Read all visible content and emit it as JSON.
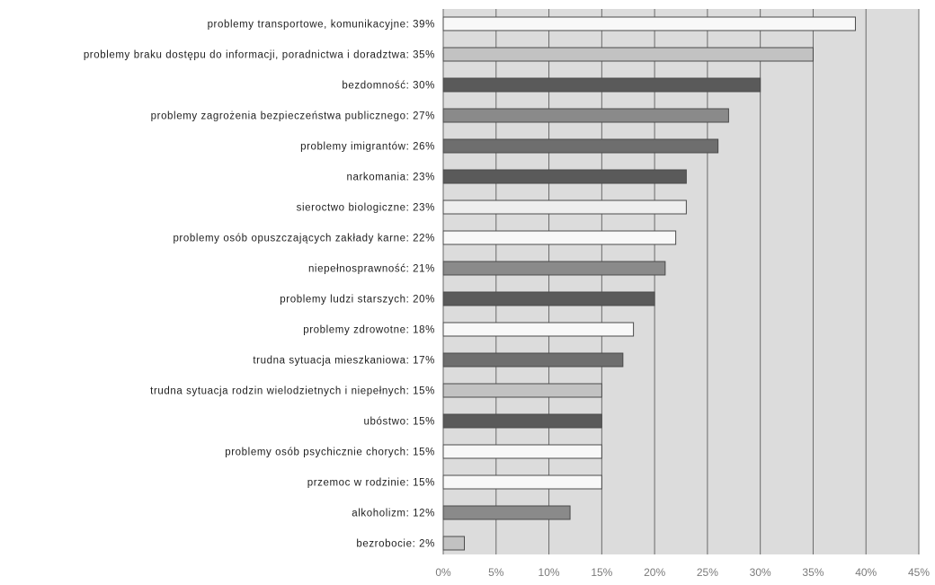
{
  "chart_data": {
    "type": "bar",
    "orientation": "horizontal",
    "title": "",
    "xlabel": "",
    "ylabel": "",
    "xlim": [
      0,
      45
    ],
    "x_ticks": [
      0,
      5,
      10,
      15,
      20,
      25,
      30,
      35,
      40,
      45
    ],
    "x_tick_labels": [
      "0%",
      "5%",
      "10%",
      "15%",
      "20%",
      "25%",
      "30%",
      "35%",
      "40%",
      "45%"
    ],
    "grid": true,
    "legend": "none",
    "categories": [
      "problemy transportowe, komunikacyjne: 39%",
      "problemy braku dostępu do informacji, poradnictwa i doradztwa: 35%",
      "bezdomność: 30%",
      "problemy zagrożenia bezpieczeństwa publicznego: 27%",
      "problemy imigrantów: 26%",
      "narkomania: 23%",
      "sieroctwo biologiczne: 23%",
      "problemy osób opuszczających zakłady karne: 22%",
      "niepełnosprawność: 21%",
      "problemy ludzi starszych: 20%",
      "problemy zdrowotne: 18%",
      "trudna sytuacja mieszkaniowa: 17%",
      "trudna sytuacja rodzin wielodzietnych i niepełnych: 15%",
      "ubóstwo: 15%",
      "problemy osób psychicznie chorych: 15%",
      "przemoc w rodzinie: 15%",
      "alkoholizm: 12%",
      "bezrobocie: 2%"
    ],
    "values": [
      39,
      35,
      30,
      27,
      26,
      23,
      23,
      22,
      21,
      20,
      18,
      17,
      15,
      15,
      15,
      15,
      12,
      2
    ],
    "bar_colors": [
      "#f8f8f8",
      "#c2c2c2",
      "#5a5a5a",
      "#8a8a8a",
      "#6e6e6e",
      "#5a5a5a",
      "#eeeeee",
      "#f8f8f8",
      "#8a8a8a",
      "#5a5a5a",
      "#f8f8f8",
      "#6e6e6e",
      "#c2c2c2",
      "#5a5a5a",
      "#f8f8f8",
      "#f8f8f8",
      "#8a8a8a",
      "#c2c2c2"
    ]
  },
  "colors": {
    "plot_background": "#dcdcdc",
    "gridline": "#6a6a6a",
    "bar_outline": "#4a4a4a",
    "label_text": "#1e1e1e",
    "tick_text": "#7a7a7a"
  }
}
